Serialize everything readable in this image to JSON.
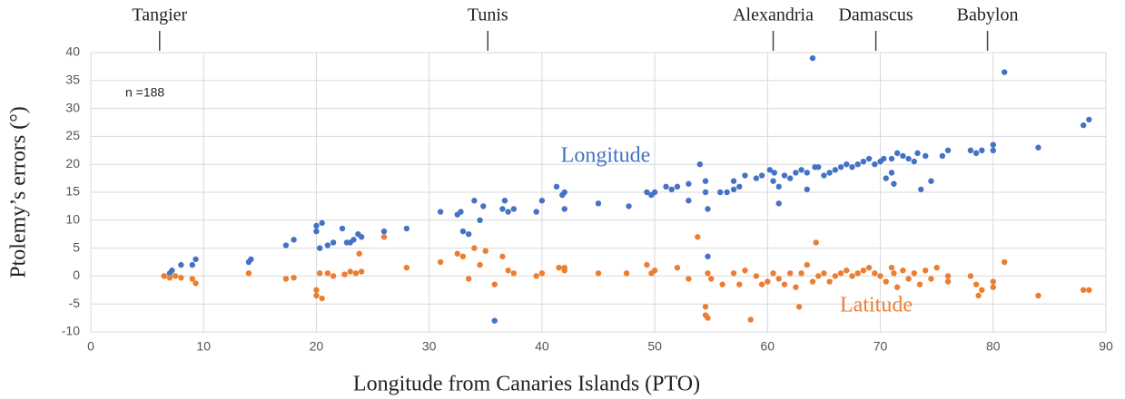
{
  "chart_data": {
    "type": "scatter",
    "xlabel": "Longitude from Canaries Islands (PTO)",
    "ylabel": "Ptolemy’s errors (°)",
    "note": "n =188",
    "xlim": [
      0,
      90
    ],
    "xticks": [
      0,
      10,
      20,
      30,
      40,
      50,
      60,
      70,
      80,
      90
    ],
    "ylim": [
      -10,
      40
    ],
    "yticks": [
      -10,
      -5,
      0,
      5,
      10,
      15,
      20,
      25,
      30,
      35,
      40
    ],
    "grid": true,
    "annotations": [
      {
        "text": "Tangier",
        "x": 6.1
      },
      {
        "text": "Tunis",
        "x": 35.2
      },
      {
        "text": "Alexandria",
        "x": 60.5
      },
      {
        "text": "Damascus",
        "x": 69.6
      },
      {
        "text": "Babylon",
        "x": 79.5
      }
    ],
    "series": [
      {
        "name": "Longitude",
        "color": "#4472c4",
        "x": [
          6.5,
          7,
          7.2,
          8,
          9,
          9.3,
          14,
          14.2,
          17.3,
          18,
          20,
          20,
          20.3,
          20.5,
          21,
          21.5,
          22.3,
          22.7,
          23,
          23.3,
          23.7,
          24,
          26,
          28,
          31,
          32.5,
          32.8,
          33,
          33.5,
          34,
          34.5,
          34.8,
          35.8,
          36.5,
          36.7,
          37,
          37.5,
          39.5,
          40,
          41.3,
          41.8,
          42,
          42,
          45,
          47.7,
          49.3,
          49.7,
          50,
          51,
          51.5,
          52,
          53,
          53,
          54,
          54.5,
          54.5,
          54.7,
          54.7,
          55.8,
          56.4,
          57,
          57,
          57.5,
          58,
          59,
          59.5,
          60.5,
          60.2,
          60.6,
          61,
          61,
          61.5,
          62,
          62.5,
          63,
          63.5,
          63.5,
          64.2,
          64,
          64.5,
          65,
          65.5,
          66,
          66.5,
          67,
          67.5,
          68,
          68.5,
          69,
          69.5,
          70,
          70.3,
          70.5,
          71,
          71,
          71.2,
          71.5,
          72,
          72.5,
          73,
          73.3,
          73.6,
          74,
          74.5,
          75.5,
          76,
          78,
          78.5,
          79,
          80,
          80,
          81,
          84,
          88,
          88.5
        ],
        "values": [
          0,
          0.5,
          1,
          2,
          2,
          3,
          2.5,
          3,
          5.5,
          6.5,
          9,
          8,
          5,
          9.5,
          5.5,
          6,
          8.5,
          6,
          6,
          6.5,
          7.5,
          7,
          8,
          8.5,
          11.5,
          11,
          11.5,
          8,
          7.5,
          13.5,
          10,
          12.5,
          -8,
          12,
          13.5,
          11.5,
          12,
          11.5,
          13.5,
          16,
          14.5,
          15,
          12,
          13,
          12.5,
          15,
          14.5,
          15,
          16,
          15.5,
          16,
          16.5,
          13.5,
          20,
          17,
          15,
          12,
          3.5,
          15,
          15,
          17,
          15.5,
          16,
          18,
          17.5,
          18,
          17,
          19,
          18.5,
          16,
          13,
          18,
          17.5,
          18.5,
          19,
          18.5,
          15.5,
          19.5,
          39,
          19.5,
          18,
          18.5,
          19,
          19.5,
          20,
          19.5,
          20,
          20.5,
          21,
          20,
          20.5,
          21,
          17.5,
          21,
          18.5,
          16.5,
          22,
          21.5,
          21,
          20.5,
          22,
          15.5,
          21.5,
          17,
          21.5,
          22.5,
          22.5,
          22,
          22.5,
          23.5,
          22.5,
          36.5,
          23,
          27,
          28
        ]
      },
      {
        "name": "Latitude",
        "color": "#ed7d31",
        "x": [
          6.5,
          7,
          7.5,
          8,
          9,
          9.3,
          14,
          17.3,
          18,
          20,
          20,
          20.3,
          20.5,
          21,
          21.5,
          22.5,
          23,
          23.5,
          23.8,
          24,
          26,
          28,
          31,
          32.5,
          33,
          33.5,
          34,
          34.5,
          35,
          35.8,
          36.5,
          37,
          37.5,
          39.5,
          40,
          41.5,
          42,
          42,
          45,
          47.5,
          49.3,
          49.7,
          50,
          52,
          53,
          53.8,
          54.5,
          54.5,
          54.7,
          54.7,
          55,
          56,
          57,
          57.5,
          58,
          58.5,
          59,
          59.5,
          60,
          60.5,
          61,
          61.5,
          62,
          62.5,
          62.8,
          63,
          63.5,
          64,
          64.3,
          64.5,
          65,
          65.5,
          66,
          66.5,
          67,
          67.5,
          68,
          68.5,
          69,
          69.5,
          70,
          70.5,
          71,
          71.2,
          71.5,
          72,
          72.5,
          73,
          73.5,
          74,
          74.5,
          75,
          76,
          76,
          78,
          78.5,
          78.7,
          79,
          80,
          80,
          81,
          84,
          88,
          88.5
        ],
        "values": [
          0,
          -0.3,
          0,
          -0.3,
          -0.5,
          -1.3,
          0.5,
          -0.5,
          -0.3,
          -2.5,
          -3.5,
          0.5,
          -4,
          0.5,
          0,
          0.3,
          0.8,
          0.5,
          4,
          0.8,
          7,
          1.5,
          2.5,
          4,
          3.5,
          -0.5,
          5,
          2,
          4.5,
          -1.5,
          3.5,
          1,
          0.5,
          0,
          0.5,
          1.5,
          1,
          1.5,
          0.5,
          0.5,
          2,
          0.5,
          1,
          1.5,
          -0.5,
          7,
          -5.5,
          -7,
          -7.5,
          0.5,
          -0.5,
          -1.5,
          0.5,
          -1.5,
          1,
          -7.8,
          0,
          -1.5,
          -1,
          0.5,
          -0.5,
          -1.5,
          0.5,
          -2,
          -5.5,
          0.5,
          2,
          -1,
          6,
          0,
          0.5,
          -1,
          0,
          0.5,
          1,
          0,
          0.5,
          1,
          1.5,
          0.5,
          0,
          -1,
          1.5,
          0.5,
          -2,
          1,
          -0.5,
          0.5,
          -1.5,
          1,
          -0.5,
          1.5,
          0,
          -1,
          0,
          -1.5,
          -3.5,
          -2.5,
          -1,
          -2,
          2.5,
          -3.5,
          -2.5,
          -2.5
        ]
      }
    ]
  }
}
